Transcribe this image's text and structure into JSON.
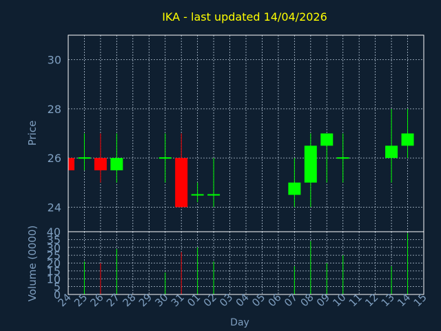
{
  "title": "IKA - last updated 14/04/2026",
  "colors": {
    "background": "#0f1f30",
    "plot_border": "#ffffff",
    "grid": "#b8c8d8",
    "title": "#ffff00",
    "axis_text": "#7f9fc0",
    "up": "#00ff00",
    "down": "#ff0000"
  },
  "chart_data": [
    {
      "type": "candlestick",
      "ylabel": "Price",
      "ylim": [
        23.0,
        31.0
      ],
      "yticks": [
        24,
        26,
        28,
        30
      ],
      "grid": true,
      "categories": [
        "24",
        "25",
        "26",
        "27",
        "28",
        "29",
        "30",
        "31",
        "01",
        "02",
        "03",
        "04",
        "05",
        "06",
        "07",
        "08",
        "09",
        "10",
        "11",
        "12",
        "13",
        "14",
        "15"
      ],
      "candles": [
        {
          "day": "24",
          "open": 26.0,
          "high": 26.0,
          "low": 25.5,
          "close": 25.5
        },
        {
          "day": "25",
          "open": 26.0,
          "high": 27.0,
          "low": 25.5,
          "close": 26.0
        },
        {
          "day": "26",
          "open": 26.0,
          "high": 27.0,
          "low": 25.0,
          "close": 25.5
        },
        {
          "day": "27",
          "open": 25.5,
          "high": 27.0,
          "low": 25.0,
          "close": 26.0
        },
        {
          "day": "30",
          "open": 26.0,
          "high": 27.0,
          "low": 25.0,
          "close": 26.0
        },
        {
          "day": "31",
          "open": 26.0,
          "high": 27.0,
          "low": 24.0,
          "close": 24.0
        },
        {
          "day": "01",
          "open": 24.5,
          "high": 25.0,
          "low": 24.2,
          "close": 24.5
        },
        {
          "day": "02",
          "open": 24.5,
          "high": 26.0,
          "low": 24.0,
          "close": 24.5
        },
        {
          "day": "07",
          "open": 24.5,
          "high": 26.0,
          "low": 24.0,
          "close": 25.0
        },
        {
          "day": "08",
          "open": 25.0,
          "high": 27.0,
          "low": 24.0,
          "close": 26.5
        },
        {
          "day": "09",
          "open": 26.5,
          "high": 27.0,
          "low": 25.0,
          "close": 27.0
        },
        {
          "day": "10",
          "open": 26.0,
          "high": 27.0,
          "low": 25.0,
          "close": 26.0
        },
        {
          "day": "13",
          "open": 26.0,
          "high": 28.0,
          "low": 25.0,
          "close": 26.5
        },
        {
          "day": "14",
          "open": 26.5,
          "high": 28.0,
          "low": 26.0,
          "close": 27.0
        }
      ]
    },
    {
      "type": "bar",
      "xlabel": "Day",
      "ylabel": "Volume (0000)",
      "ylim": [
        0,
        40
      ],
      "yticks": [
        0,
        5,
        10,
        15,
        20,
        25,
        30,
        35,
        40
      ],
      "grid": true,
      "categories": [
        "24",
        "25",
        "26",
        "27",
        "28",
        "29",
        "30",
        "31",
        "01",
        "02",
        "03",
        "04",
        "05",
        "06",
        "07",
        "08",
        "09",
        "10",
        "11",
        "12",
        "13",
        "14",
        "15"
      ],
      "values": [
        0,
        21,
        20,
        29,
        0,
        0,
        14,
        27,
        30,
        21,
        0,
        0,
        0,
        0,
        18,
        34,
        20,
        25,
        0,
        0,
        18,
        39,
        0
      ],
      "direction": [
        "down",
        "up",
        "down",
        "up",
        "",
        "",
        "up",
        "down",
        "up",
        "up",
        "",
        "",
        "",
        "",
        "up",
        "up",
        "up",
        "up",
        "",
        "",
        "up",
        "up",
        ""
      ]
    }
  ]
}
